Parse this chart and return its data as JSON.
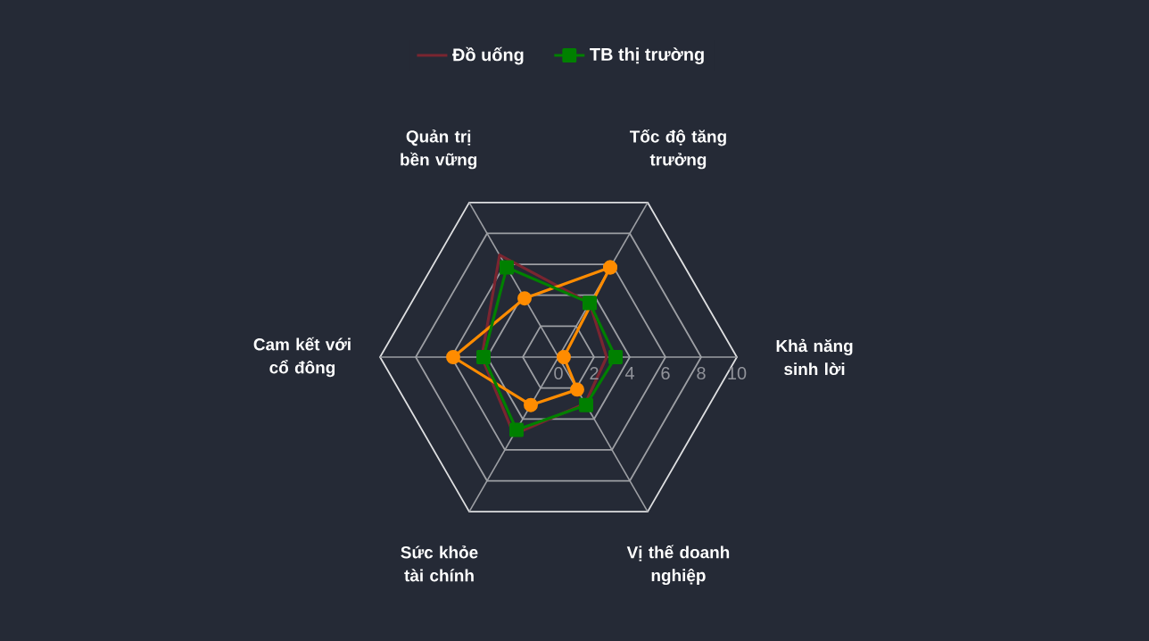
{
  "chart_data": {
    "type": "radar",
    "categories": [
      "Tốc độ tăng trưởng",
      "Khả năng sinh lời",
      "Vị thế doanh nghiệp",
      "Sức khỏe tài chính",
      "Cam kết với cổ đông",
      "Quản trị bền vững"
    ],
    "series": [
      {
        "name": "Đồ uống",
        "color": "#7a2530",
        "values": [
          3.5,
          2.7,
          3.0,
          5.0,
          4.3,
          6.6
        ]
      },
      {
        "color": "#ff8c00",
        "marker": "circle",
        "values": [
          5.8,
          0.3,
          2.1,
          3.1,
          5.9,
          3.8
        ]
      },
      {
        "name": "TB thị trường",
        "color": "#008000",
        "marker": "square",
        "values": [
          3.5,
          3.2,
          3.1,
          4.7,
          4.2,
          5.8
        ]
      }
    ],
    "ylim": [
      0,
      10
    ],
    "yticks": [
      0,
      2,
      4,
      6,
      8,
      10
    ],
    "grid": true,
    "legend": "top"
  }
}
